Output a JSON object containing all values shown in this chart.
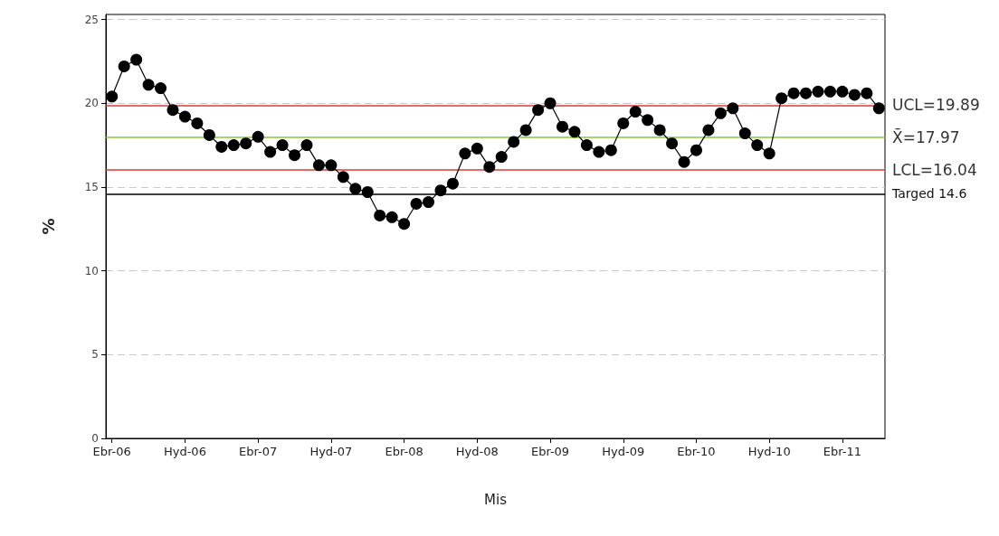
{
  "chart_data": {
    "type": "line",
    "xlabel": "Mis",
    "ylabel": "%",
    "categories": [
      "Ebr-06",
      null,
      null,
      null,
      null,
      null,
      "Hyd-06",
      null,
      null,
      null,
      null,
      null,
      "Ebr-07",
      null,
      null,
      null,
      null,
      null,
      "Hyd-07",
      null,
      null,
      null,
      null,
      null,
      "Ebr-08",
      null,
      null,
      null,
      null,
      null,
      "Hyd-08",
      null,
      null,
      null,
      null,
      null,
      "Ebr-09",
      null,
      null,
      null,
      null,
      null,
      "Hyd-09",
      null,
      null,
      null,
      null,
      null,
      "Ebr-10",
      null,
      null,
      null,
      null,
      null,
      "Hyd-10",
      null,
      null,
      null,
      null,
      null,
      "Ebr-11",
      null,
      null,
      null
    ],
    "series": [
      {
        "color": "#000000",
        "values": [
          20.4,
          22.2,
          22.6,
          21.1,
          20.9,
          19.6,
          19.2,
          18.8,
          18.1,
          17.4,
          17.5,
          17.6,
          18.0,
          17.1,
          17.5,
          16.9,
          17.5,
          16.3,
          16.3,
          15.6,
          14.9,
          14.7,
          13.3,
          13.2,
          12.8,
          14.0,
          14.1,
          14.8,
          15.2,
          17.0,
          17.3,
          16.2,
          16.8,
          17.7,
          18.4,
          19.6,
          20.0,
          18.6,
          18.3,
          17.5,
          17.1,
          17.2,
          18.8,
          19.5,
          19.0,
          18.4,
          17.6,
          16.5,
          17.2,
          18.4,
          19.4,
          19.7,
          18.2,
          17.5,
          17.0,
          20.3,
          20.6,
          20.6,
          20.7,
          20.7,
          20.7,
          20.5,
          20.6,
          19.7
        ]
      }
    ],
    "ylim": [
      0,
      25.3
    ],
    "yticks": [
      0,
      5,
      10,
      15,
      20,
      25
    ],
    "grid": "y",
    "marker": "circle",
    "line_style": "solid",
    "ref_lines": [
      {
        "axis": "y",
        "value": 19.89,
        "label": "UCL=19.89",
        "color": "#d83a3a"
      },
      {
        "axis": "y",
        "value": 17.97,
        "label": "X̄=17.97",
        "color": "#8cc43c"
      },
      {
        "axis": "y",
        "value": 16.04,
        "label": "LCL=16.04",
        "color": "#d83a3a"
      },
      {
        "axis": "y",
        "value": 14.6,
        "label": "Targed 14.6",
        "color": "#000000"
      }
    ]
  }
}
